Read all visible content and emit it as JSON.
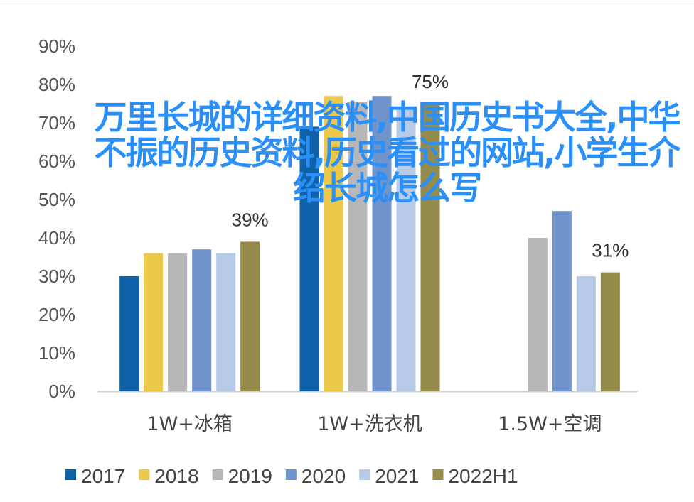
{
  "chart_data": {
    "type": "bar",
    "title": "",
    "xlabel": "",
    "ylabel": "",
    "ylim": [
      0,
      90
    ],
    "yticks": [
      "0%",
      "10%",
      "20%",
      "30%",
      "40%",
      "50%",
      "60%",
      "70%",
      "80%",
      "90%"
    ],
    "categories": [
      "1W+冰箱",
      "1W+洗衣机",
      "1.5W+空调"
    ],
    "series": [
      {
        "name": "2017",
        "color": "#1062a8",
        "values": [
          30,
          69,
          0
        ]
      },
      {
        "name": "2018",
        "color": "#ecc94b",
        "values": [
          36,
          77,
          0
        ]
      },
      {
        "name": "2019",
        "color": "#b7b7b7",
        "values": [
          36,
          75.5,
          40
        ]
      },
      {
        "name": "2020",
        "color": "#6f94cc",
        "values": [
          37,
          77,
          47
        ]
      },
      {
        "name": "2021",
        "color": "#b7cbe8",
        "values": [
          36,
          74,
          30
        ]
      },
      {
        "name": "2022H1",
        "color": "#958b4a",
        "values": [
          39,
          75,
          31
        ]
      }
    ],
    "data_labels": [
      {
        "series": "2022H1",
        "category": "1W+冰箱",
        "text": "39%"
      },
      {
        "series": "2022H1",
        "category": "1W+洗衣机",
        "text": "75%"
      },
      {
        "series": "2022H1",
        "category": "1.5W+空调",
        "text": "31%"
      }
    ],
    "grid": false,
    "legend": "bottom"
  },
  "overlay_text": "万里长城的详细资料,中国历史书大全,中华不振的历史资料,历史看过的网站,小学生介绍长城怎么写"
}
